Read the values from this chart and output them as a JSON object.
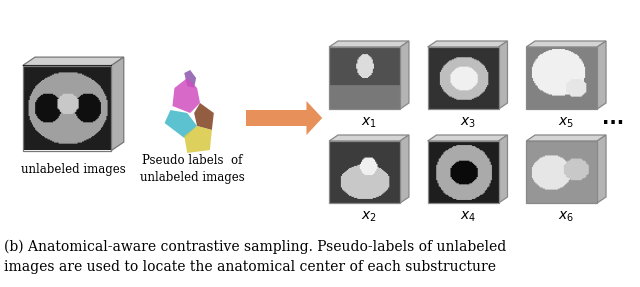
{
  "title_text": "(b) Anatomical-aware contrastive sampling. Pseudo-labels of unlabeled\nimages are used to locate the anatomical center of each substructure",
  "label_unlabeled": "unlabeled images",
  "label_pseudo": "Pseudo labels  of\nunlabeled images",
  "ellipsis": "...",
  "bg_color": "#ffffff",
  "cube_face_color": "#c8c8c8",
  "cube_edge_color": "#808080",
  "arrow_color": "#e8905a",
  "text_color": "#000000",
  "caption_fontsize": 10,
  "label_fontsize": 8.5,
  "sub_fontsize": 10
}
